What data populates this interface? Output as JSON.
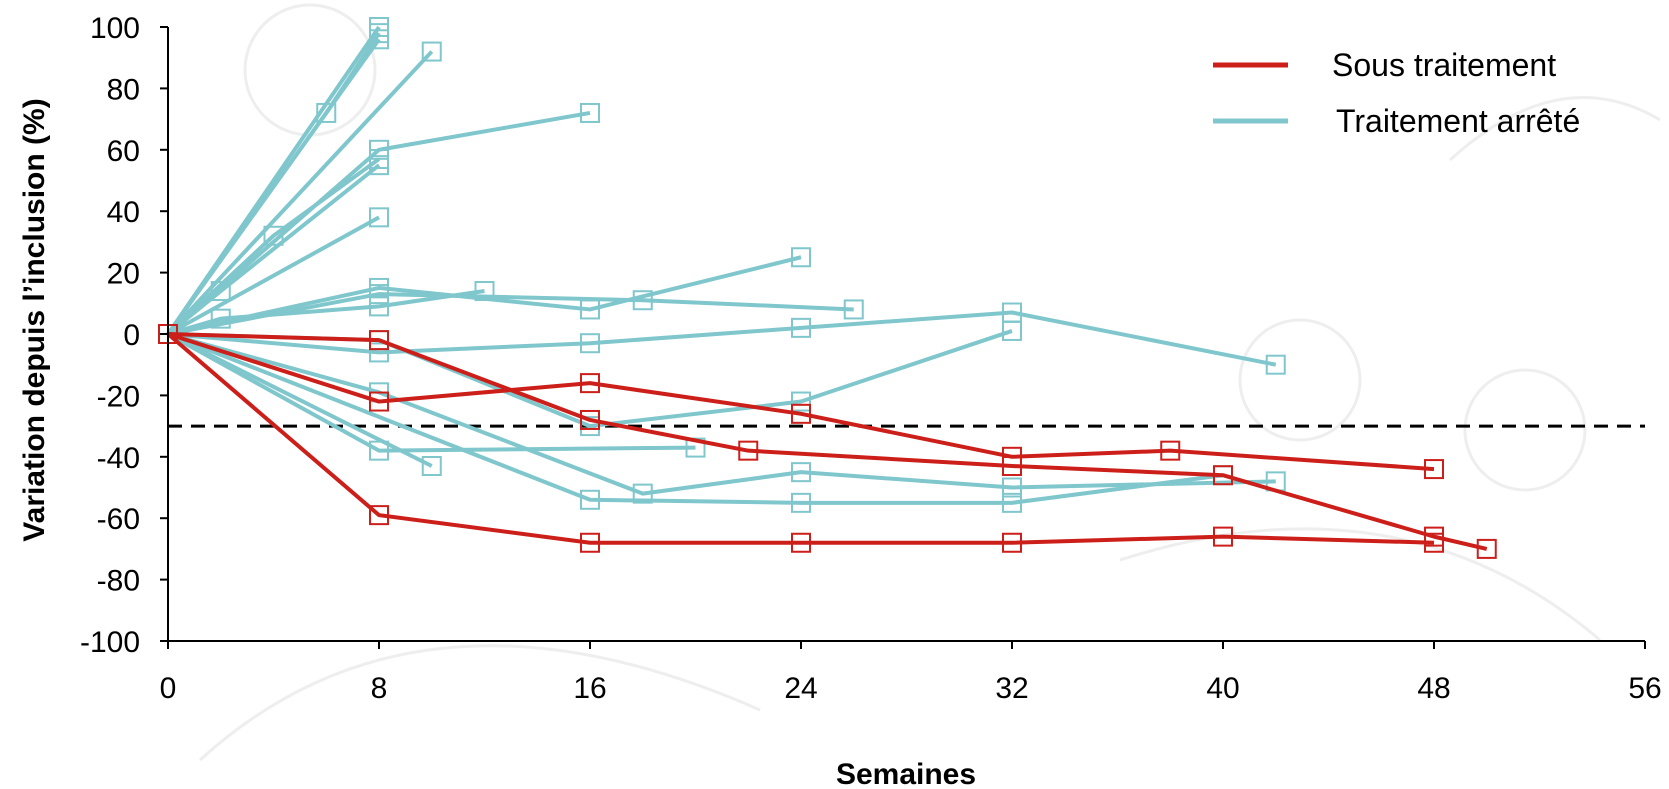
{
  "chart_data": {
    "type": "line",
    "xlabel": "Semaines",
    "ylabel": "Variation depuis l’inclusion (%)",
    "xlim": [
      0,
      56
    ],
    "ylim": [
      -100,
      100
    ],
    "xticks": [
      0,
      8,
      16,
      24,
      32,
      40,
      48,
      56
    ],
    "yticks": [
      100,
      80,
      60,
      40,
      20,
      0,
      -20,
      -40,
      -60,
      -80,
      -100
    ],
    "reference_line": {
      "y": -30,
      "style": "dashed"
    },
    "legend": {
      "position": "top-right",
      "entries": [
        {
          "label": "Sous traitement",
          "color": "#cc1f1a"
        },
        {
          "label": "Traitement arrêté",
          "color": "#7fc7cc"
        }
      ]
    },
    "colors": {
      "on_treatment": "#cc1f1a",
      "stopped": "#7fc7cc"
    },
    "series": [
      {
        "group": "stopped",
        "points": [
          [
            0,
            0
          ],
          [
            8,
            100
          ]
        ]
      },
      {
        "group": "stopped",
        "points": [
          [
            0,
            0
          ],
          [
            8,
            96
          ]
        ]
      },
      {
        "group": "stopped",
        "points": [
          [
            0,
            0
          ],
          [
            6,
            72
          ],
          [
            8,
            98
          ]
        ]
      },
      {
        "group": "stopped",
        "points": [
          [
            0,
            0
          ],
          [
            10,
            92
          ]
        ]
      },
      {
        "group": "stopped",
        "points": [
          [
            0,
            0
          ],
          [
            8,
            60
          ],
          [
            16,
            72
          ]
        ]
      },
      {
        "group": "stopped",
        "points": [
          [
            0,
            0
          ],
          [
            4,
            32
          ],
          [
            8,
            57
          ]
        ]
      },
      {
        "group": "stopped",
        "points": [
          [
            0,
            0
          ],
          [
            2,
            14
          ],
          [
            8,
            55
          ]
        ]
      },
      {
        "group": "stopped",
        "points": [
          [
            0,
            0
          ],
          [
            8,
            38
          ]
        ]
      },
      {
        "group": "stopped",
        "points": [
          [
            0,
            0
          ],
          [
            8,
            15
          ],
          [
            16,
            8
          ],
          [
            24,
            25
          ]
        ]
      },
      {
        "group": "stopped",
        "points": [
          [
            0,
            0
          ],
          [
            8,
            13
          ],
          [
            18,
            11
          ],
          [
            26,
            8
          ]
        ]
      },
      {
        "group": "stopped",
        "points": [
          [
            0,
            0
          ],
          [
            2,
            5
          ],
          [
            8,
            9
          ],
          [
            12,
            14
          ]
        ]
      },
      {
        "group": "stopped",
        "points": [
          [
            0,
            0
          ],
          [
            8,
            -6
          ],
          [
            16,
            -3
          ],
          [
            24,
            2
          ],
          [
            32,
            7
          ],
          [
            42,
            -10
          ]
        ]
      },
      {
        "group": "stopped",
        "points": [
          [
            0,
            0
          ],
          [
            8,
            -2
          ],
          [
            16,
            -30
          ],
          [
            24,
            -22
          ],
          [
            32,
            1
          ]
        ]
      },
      {
        "group": "stopped",
        "points": [
          [
            0,
            0
          ],
          [
            8,
            -19
          ],
          [
            18,
            -52
          ],
          [
            24,
            -45
          ],
          [
            32,
            -50
          ],
          [
            42,
            -48
          ]
        ]
      },
      {
        "group": "stopped",
        "points": [
          [
            0,
            0
          ],
          [
            8,
            -38
          ],
          [
            20,
            -37
          ]
        ]
      },
      {
        "group": "stopped",
        "points": [
          [
            0,
            0
          ],
          [
            10,
            -43
          ]
        ]
      },
      {
        "group": "stopped",
        "points": [
          [
            0,
            0
          ],
          [
            16,
            -54
          ],
          [
            24,
            -55
          ],
          [
            32,
            -55
          ],
          [
            40,
            -46
          ]
        ]
      },
      {
        "group": "on_treatment",
        "points": [
          [
            0,
            0
          ],
          [
            8,
            -2
          ],
          [
            16,
            -28
          ],
          [
            22,
            -38
          ],
          [
            32,
            -43
          ],
          [
            40,
            -46
          ],
          [
            48,
            -66
          ],
          [
            50,
            -70
          ]
        ]
      },
      {
        "group": "on_treatment",
        "points": [
          [
            0,
            0
          ],
          [
            8,
            -22
          ],
          [
            16,
            -16
          ],
          [
            24,
            -26
          ],
          [
            32,
            -40
          ],
          [
            38,
            -38
          ],
          [
            48,
            -44
          ]
        ]
      },
      {
        "group": "on_treatment",
        "points": [
          [
            0,
            0
          ],
          [
            8,
            -59
          ],
          [
            16,
            -68
          ],
          [
            24,
            -68
          ],
          [
            32,
            -68
          ],
          [
            40,
            -66
          ],
          [
            48,
            -68
          ]
        ]
      }
    ]
  }
}
